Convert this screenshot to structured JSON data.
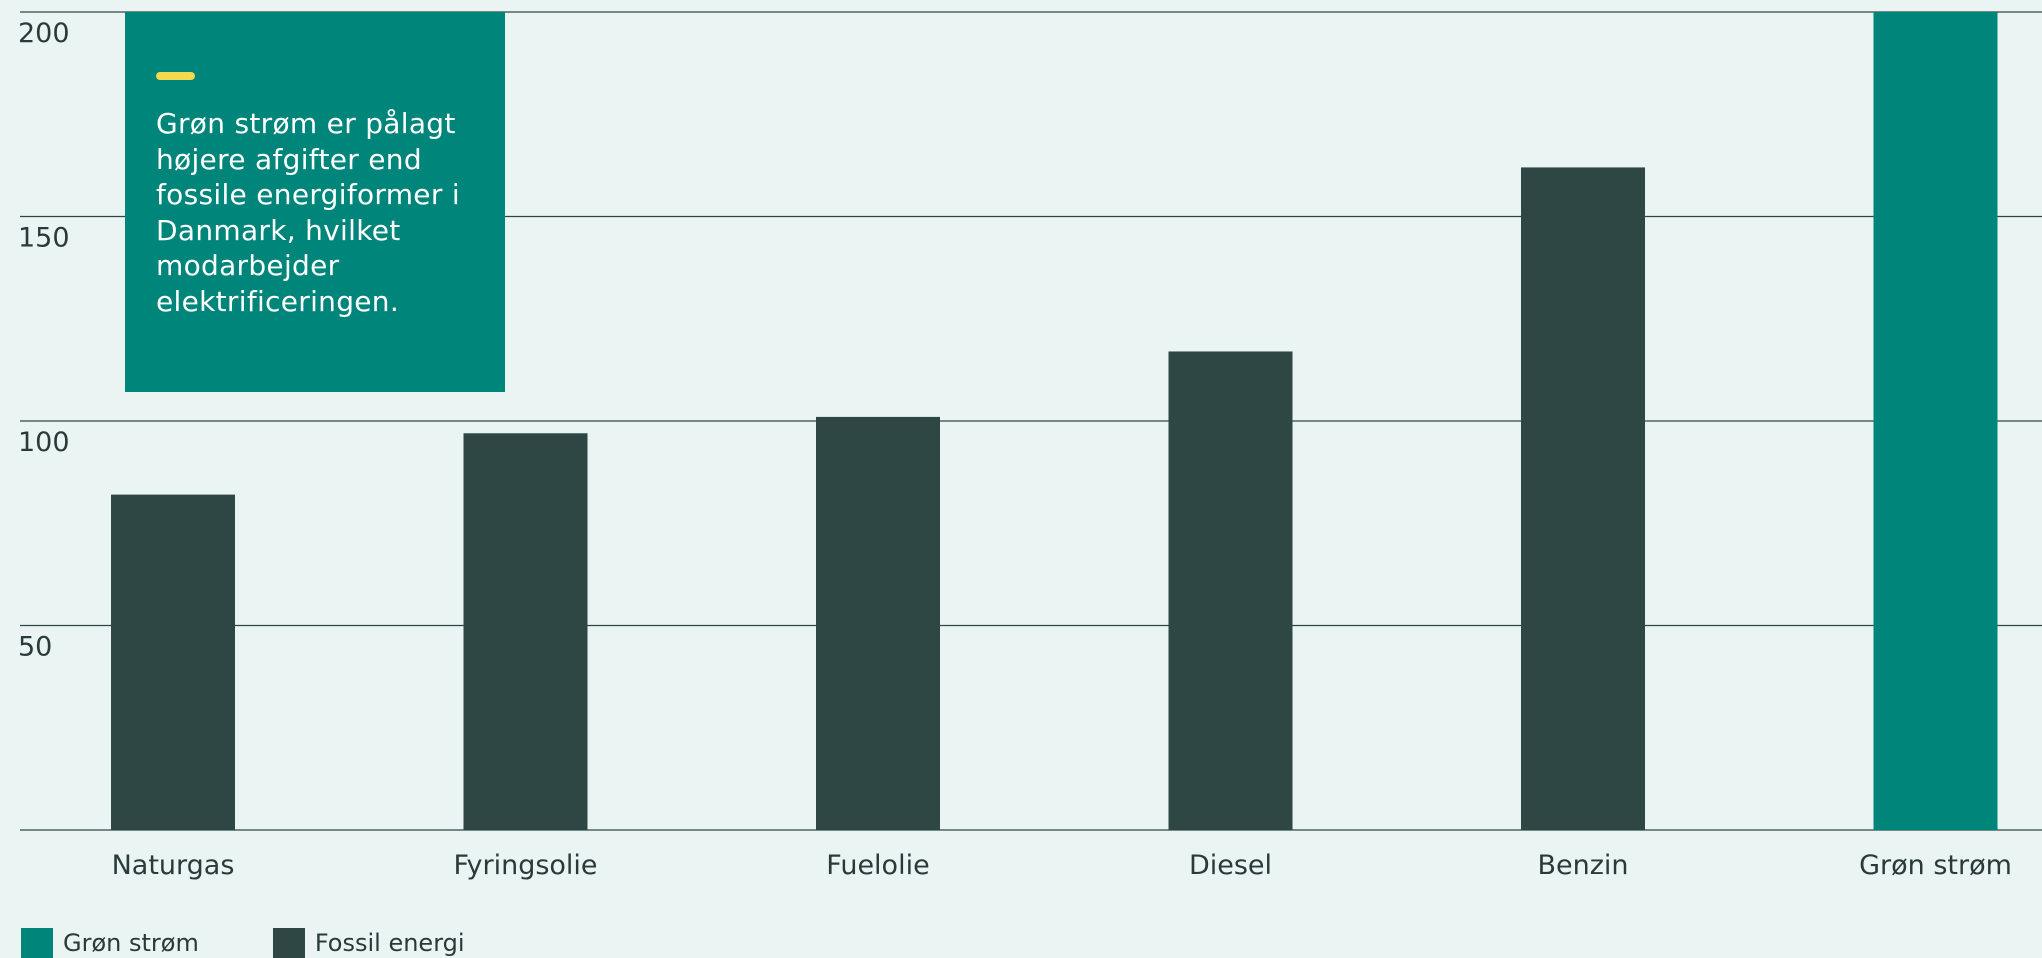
{
  "colors": {
    "background": "#eaf4f2",
    "green": "#00857a",
    "fossil": "#2e4744",
    "gridline": "#2e4744",
    "accent": "#f2d94e",
    "text": "#2a3a3a"
  },
  "annotation": {
    "text": "Grøn strøm er pålagt højere afgifter end fossile energiformer i Danmark, hvilket modarbejder elektrificeringen."
  },
  "legend": [
    {
      "label": "Grøn strøm",
      "series": "green"
    },
    {
      "label": "Fossil energi",
      "series": "fossil"
    }
  ],
  "chart_data": {
    "type": "bar",
    "title": "",
    "xlabel": "",
    "ylabel": "",
    "categories": [
      "Naturgas",
      "Fyringsolie",
      "Fuelolie",
      "Diesel",
      "Benzin",
      "Grøn strøm"
    ],
    "values": [
      82,
      97,
      101,
      117,
      162,
      200
    ],
    "bar_series": [
      "fossil",
      "fossil",
      "fossil",
      "fossil",
      "fossil",
      "green"
    ],
    "ylim": [
      0,
      200
    ],
    "yticks": [
      50,
      100,
      150,
      200
    ],
    "grid": true,
    "legend_position": "bottom-left"
  }
}
